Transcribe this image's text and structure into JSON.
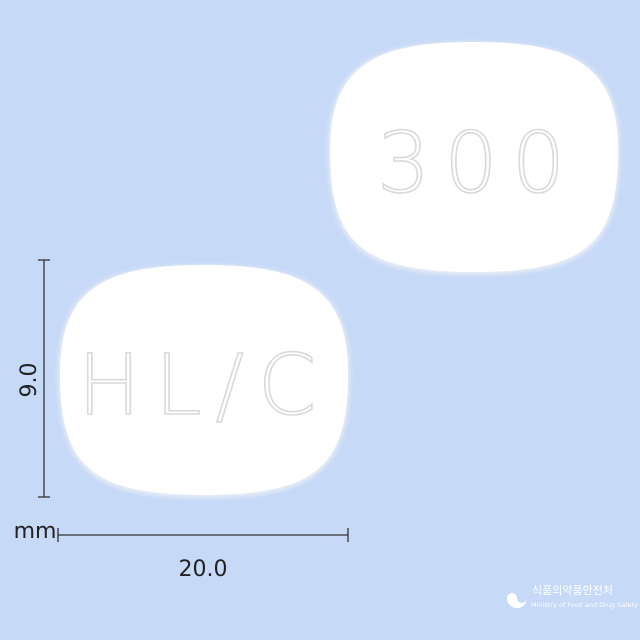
{
  "tablets": [
    {
      "imprint": "300"
    },
    {
      "imprint": "HL/C"
    }
  ],
  "dimensions": {
    "height": "9.0",
    "width": "20.0",
    "unit": "mm"
  },
  "logo": {
    "korean": "식품의약품안전처",
    "english": "Ministry of Food and Drug Safety"
  }
}
